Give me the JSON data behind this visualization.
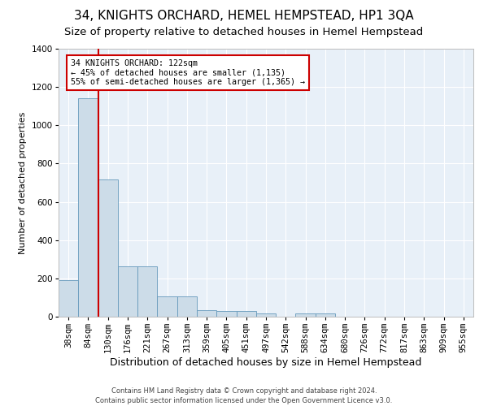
{
  "title": "34, KNIGHTS ORCHARD, HEMEL HEMPSTEAD, HP1 3QA",
  "subtitle": "Size of property relative to detached houses in Hemel Hempstead",
  "xlabel": "Distribution of detached houses by size in Hemel Hempstead",
  "ylabel": "Number of detached properties",
  "footer": "Contains HM Land Registry data © Crown copyright and database right 2024.\nContains public sector information licensed under the Open Government Licence v3.0.",
  "bin_labels": [
    "38sqm",
    "84sqm",
    "130sqm",
    "176sqm",
    "221sqm",
    "267sqm",
    "313sqm",
    "359sqm",
    "405sqm",
    "451sqm",
    "497sqm",
    "542sqm",
    "588sqm",
    "634sqm",
    "680sqm",
    "726sqm",
    "772sqm",
    "817sqm",
    "863sqm",
    "909sqm",
    "955sqm"
  ],
  "bar_values": [
    190,
    1140,
    715,
    265,
    265,
    105,
    105,
    35,
    28,
    28,
    15,
    0,
    15,
    15,
    0,
    0,
    0,
    0,
    0,
    0,
    0
  ],
  "bar_color": "#ccdce8",
  "bar_edge_color": "#6699bb",
  "ylim": [
    0,
    1400
  ],
  "yticks": [
    0,
    200,
    400,
    600,
    800,
    1000,
    1200,
    1400
  ],
  "vline_x": 1.5,
  "vline_color": "#cc0000",
  "annotation_text": "34 KNIGHTS ORCHARD: 122sqm\n← 45% of detached houses are smaller (1,135)\n55% of semi-detached houses are larger (1,365) →",
  "annotation_box_color": "#cc0000",
  "title_fontsize": 11,
  "subtitle_fontsize": 9.5,
  "background_color": "#e8f0f8",
  "grid_color": "#ffffff",
  "ylabel_fontsize": 8,
  "xlabel_fontsize": 9,
  "tick_fontsize": 7.5,
  "footer_fontsize": 6,
  "footer_color": "#444444"
}
